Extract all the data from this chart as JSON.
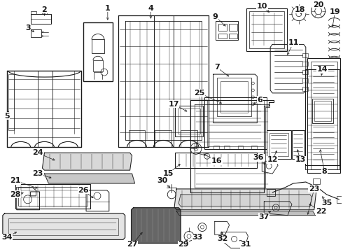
{
  "bg_color": "#ffffff",
  "line_color": "#1a1a1a",
  "fig_width": 4.9,
  "fig_height": 3.6,
  "dpi": 100,
  "font_size": 6.5,
  "font_size_large": 8.0
}
